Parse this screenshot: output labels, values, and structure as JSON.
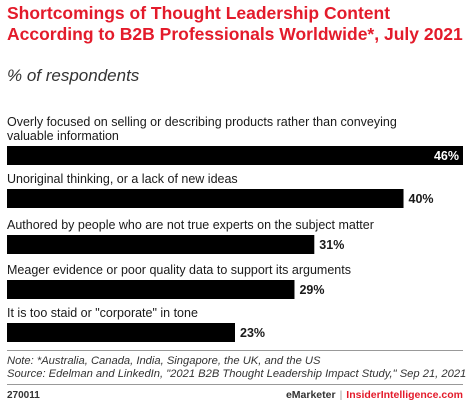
{
  "header": {
    "title": "Shortcomings of Thought Leadership Content According to B2B Professionals Worldwide*, July 2021",
    "subtitle": "% of respondents"
  },
  "chart_data": {
    "type": "bar",
    "orientation": "horizontal",
    "categories": [
      "Overly focused on selling or describing products rather than conveying valuable information",
      "Unoriginal thinking, or a lack of new ideas",
      "Authored by people who are not true experts on the subject matter",
      "Meager evidence or poor quality data to support its arguments",
      "It is too staid or \"corporate\" in tone"
    ],
    "values": [
      46,
      40,
      31,
      29,
      23
    ],
    "value_labels": [
      "46%",
      "40%",
      "31%",
      "29%",
      "23%"
    ],
    "bar_color": "#000000",
    "xlim": [
      0,
      46
    ]
  },
  "note": "Note: *Australia, Canada, India, Singapore, the UK, and the US",
  "source": "Source: Edelman and LinkedIn, \"2021 B2B Thought Leadership Impact Study,\" Sep 21, 2021",
  "footer": {
    "chart_id": "270011",
    "brand1": "eMarketer",
    "separator": "|",
    "brand2": "InsiderIntelligence.com"
  }
}
